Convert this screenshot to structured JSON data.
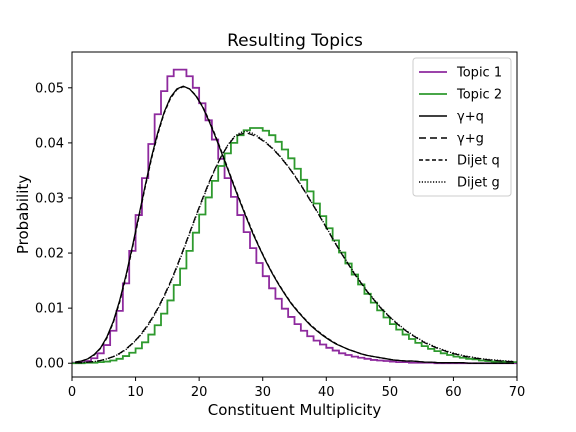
{
  "chart_data": {
    "type": "line",
    "title": "Resulting Topics",
    "xlabel": "Constituent Multiplicity",
    "ylabel": "Probability",
    "xlim": [
      0,
      70
    ],
    "ylim": [
      -0.0025,
      0.0565
    ],
    "xticks": [
      0,
      10,
      20,
      30,
      40,
      50,
      60,
      70
    ],
    "yticks": [
      0.0,
      0.01,
      0.02,
      0.03,
      0.04,
      0.05
    ],
    "ytick_labels": [
      "0.00",
      "0.01",
      "0.02",
      "0.03",
      "0.04",
      "0.05"
    ],
    "grid": false,
    "legend_position": "top-right",
    "bin_edges_start": 0,
    "bin_width": 1,
    "series": [
      {
        "name": "Topic 1",
        "style": "step",
        "color": "#8e2a9e",
        "values": [
          0.0001,
          0.0002,
          0.0004,
          0.0009,
          0.0018,
          0.0033,
          0.0059,
          0.0095,
          0.0145,
          0.0204,
          0.0269,
          0.0336,
          0.0398,
          0.0452,
          0.0494,
          0.0521,
          0.0533,
          0.0533,
          0.0521,
          0.05,
          0.0472,
          0.0441,
          0.0406,
          0.0371,
          0.0336,
          0.0302,
          0.0269,
          0.0238,
          0.0209,
          0.0182,
          0.0158,
          0.0136,
          0.0117,
          0.0099,
          0.0084,
          0.0071,
          0.0059,
          0.0049,
          0.0041,
          0.0034,
          0.0028,
          0.0023,
          0.0018,
          0.0015,
          0.0012,
          0.001,
          0.0008,
          0.0006,
          0.0005,
          0.0004,
          0.0003,
          0.0002,
          0.0002,
          0.0001,
          0.0001,
          0.0001,
          0.0001,
          0.0,
          0.0,
          0.0,
          0.0,
          0.0,
          0.0,
          0.0,
          0.0,
          0.0,
          0.0,
          0.0,
          0.0,
          0.0
        ]
      },
      {
        "name": "Topic 2",
        "style": "step",
        "color": "#2e9a2e",
        "values": [
          0.0,
          0.0,
          0.0001,
          0.0001,
          0.0002,
          0.0003,
          0.0005,
          0.0008,
          0.0013,
          0.0019,
          0.0027,
          0.0038,
          0.0052,
          0.0069,
          0.009,
          0.0114,
          0.0142,
          0.0172,
          0.0204,
          0.0237,
          0.027,
          0.0301,
          0.0331,
          0.0358,
          0.0381,
          0.04,
          0.0414,
          0.0423,
          0.0427,
          0.0427,
          0.0422,
          0.0414,
          0.0402,
          0.0388,
          0.0372,
          0.0353,
          0.0333,
          0.0312,
          0.029,
          0.0267,
          0.0245,
          0.0223,
          0.0201,
          0.0181,
          0.0161,
          0.0143,
          0.0126,
          0.011,
          0.0096,
          0.0083,
          0.0071,
          0.0061,
          0.0052,
          0.0044,
          0.0037,
          0.0031,
          0.0026,
          0.0022,
          0.0018,
          0.0015,
          0.0012,
          0.001,
          0.0008,
          0.0007,
          0.0005,
          0.0004,
          0.0003,
          0.0003,
          0.0002,
          0.0002
        ]
      },
      {
        "name": "γ+q",
        "style": "solid",
        "color": "#000000",
        "values": [
          0.0002,
          0.0004,
          0.0008,
          0.0016,
          0.0028,
          0.0048,
          0.0076,
          0.0114,
          0.016,
          0.0212,
          0.0267,
          0.0322,
          0.0374,
          0.0419,
          0.0456,
          0.0483,
          0.0498,
          0.0503,
          0.0498,
          0.0485,
          0.0466,
          0.0441,
          0.0413,
          0.0383,
          0.0352,
          0.0321,
          0.0291,
          0.0262,
          0.0234,
          0.0209,
          0.0185,
          0.0163,
          0.0143,
          0.0125,
          0.0108,
          0.0094,
          0.0081,
          0.0069,
          0.0059,
          0.005,
          0.0042,
          0.0035,
          0.003,
          0.0025,
          0.0021,
          0.0017,
          0.0014,
          0.0012,
          0.001,
          0.0008,
          0.0006,
          0.0005,
          0.0004,
          0.0004,
          0.0003,
          0.0002,
          0.0002,
          0.0001,
          0.0001,
          0.0001,
          0.0001,
          0.0001,
          0.0,
          0.0,
          0.0,
          0.0,
          0.0,
          0.0,
          0.0,
          0.0
        ]
      },
      {
        "name": "γ+g",
        "style": "dashed",
        "color": "#000000",
        "values": [
          0.0001,
          0.0001,
          0.0002,
          0.0003,
          0.0005,
          0.0008,
          0.0012,
          0.0018,
          0.0026,
          0.0036,
          0.0048,
          0.0063,
          0.008,
          0.01,
          0.0123,
          0.0148,
          0.0176,
          0.0206,
          0.0237,
          0.0268,
          0.0298,
          0.0327,
          0.0353,
          0.0376,
          0.0395,
          0.041,
          0.0416,
          0.0418,
          0.0414,
          0.0408,
          0.04,
          0.039,
          0.0378,
          0.0364,
          0.0349,
          0.0332,
          0.0314,
          0.0295,
          0.0276,
          0.0256,
          0.0236,
          0.0216,
          0.0197,
          0.0179,
          0.0161,
          0.0145,
          0.0129,
          0.0115,
          0.0101,
          0.0089,
          0.0078,
          0.0068,
          0.0059,
          0.0051,
          0.0044,
          0.0037,
          0.0032,
          0.0027,
          0.0023,
          0.0019,
          0.0016,
          0.0013,
          0.0011,
          0.0009,
          0.0008,
          0.0006,
          0.0005,
          0.0004,
          0.0003,
          0.0003
        ]
      },
      {
        "name": "Dijet q",
        "style": "dashed-fine",
        "color": "#000000",
        "values": [
          0.0002,
          0.0004,
          0.0008,
          0.0015,
          0.0027,
          0.0046,
          0.0074,
          0.0111,
          0.0157,
          0.0209,
          0.0264,
          0.0319,
          0.0371,
          0.0416,
          0.0454,
          0.0481,
          0.0497,
          0.0502,
          0.0498,
          0.0486,
          0.0467,
          0.0443,
          0.0415,
          0.0385,
          0.0354,
          0.0323,
          0.0293,
          0.0264,
          0.0236,
          0.021,
          0.0186,
          0.0164,
          0.0144,
          0.0126,
          0.0109,
          0.0095,
          0.0082,
          0.007,
          0.006,
          0.0051,
          0.0043,
          0.0036,
          0.003,
          0.0025,
          0.0021,
          0.0017,
          0.0014,
          0.0012,
          0.001,
          0.0008,
          0.0006,
          0.0005,
          0.0004,
          0.0004,
          0.0003,
          0.0002,
          0.0002,
          0.0001,
          0.0001,
          0.0001,
          0.0001,
          0.0001,
          0.0,
          0.0,
          0.0,
          0.0,
          0.0,
          0.0,
          0.0,
          0.0
        ]
      },
      {
        "name": "Dijet g",
        "style": "dotted",
        "color": "#000000",
        "values": [
          0.0001,
          0.0001,
          0.0002,
          0.0003,
          0.0005,
          0.0008,
          0.0012,
          0.0017,
          0.0025,
          0.0035,
          0.0047,
          0.0061,
          0.0078,
          0.0098,
          0.0121,
          0.0146,
          0.0174,
          0.0204,
          0.0235,
          0.0266,
          0.0296,
          0.0325,
          0.0352,
          0.0376,
          0.0396,
          0.0411,
          0.0419,
          0.0421,
          0.0417,
          0.041,
          0.0401,
          0.0391,
          0.0379,
          0.0365,
          0.035,
          0.0333,
          0.0315,
          0.0296,
          0.0277,
          0.0257,
          0.0237,
          0.0217,
          0.0198,
          0.018,
          0.0162,
          0.0146,
          0.013,
          0.0116,
          0.0102,
          0.009,
          0.0079,
          0.0069,
          0.006,
          0.0052,
          0.0045,
          0.0038,
          0.0033,
          0.0028,
          0.0024,
          0.002,
          0.0017,
          0.0014,
          0.0012,
          0.001,
          0.0008,
          0.0007,
          0.0006,
          0.0005,
          0.0004,
          0.0003
        ]
      }
    ]
  }
}
